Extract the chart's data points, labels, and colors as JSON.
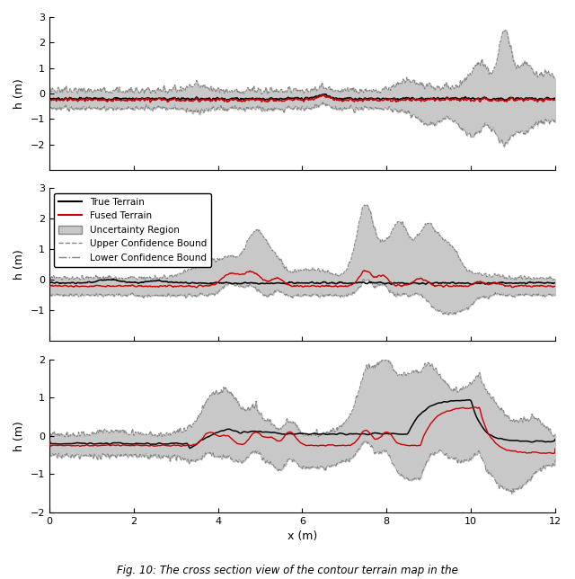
{
  "xlim": [
    0,
    12
  ],
  "subplot1_ylim": [
    -3,
    3
  ],
  "subplot2_ylim": [
    -2,
    3
  ],
  "subplot3_ylim": [
    -2,
    2
  ],
  "ylabel": "h (m)",
  "xlabel": "x (m)",
  "true_terrain_color": "#000000",
  "fused_terrain_color": "#cc0000",
  "uncertainty_color": "#c8c8c8",
  "confidence_bound_color": "#808080",
  "legend_labels": [
    "True Terrain",
    "Fused Terrain",
    "Uncertainty Region",
    "Upper Confidence Bound",
    "Lower Confidence Bound"
  ],
  "fig_caption": "Fig. 10: The cross section view of the contour terrain map in the"
}
